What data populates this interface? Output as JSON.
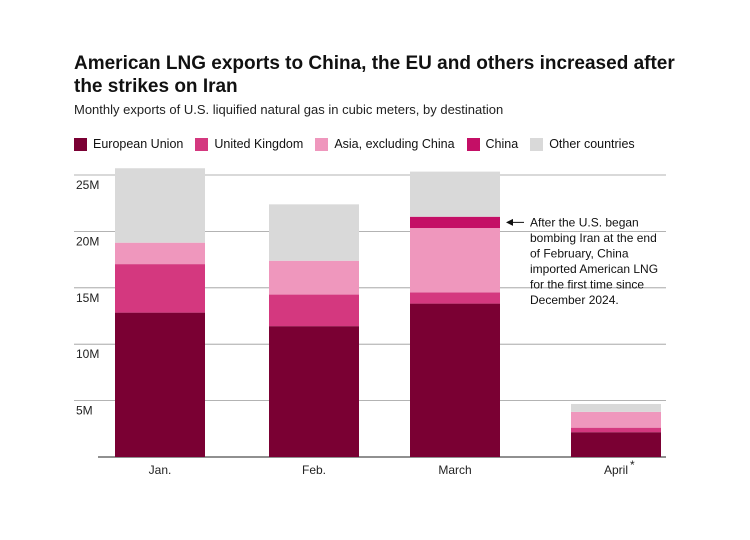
{
  "chart_data": {
    "type": "bar",
    "stacked": true,
    "title": "American LNG exports to China, the EU and others increased after the strikes on Iran",
    "subtitle": "Monthly exports of U.S. liquified natural gas in cubic meters, by destination",
    "categories": [
      "Jan.",
      "Feb.",
      "March",
      "April"
    ],
    "category_marks": [
      "",
      "",
      "",
      "*"
    ],
    "series": [
      {
        "name": "European Union",
        "color": "#7a0033",
        "values": [
          12.8,
          11.6,
          13.6,
          2.2
        ]
      },
      {
        "name": "United Kingdom",
        "color": "#d4387f",
        "values": [
          4.3,
          2.8,
          1.0,
          0.4
        ]
      },
      {
        "name": "Asia, excluding China",
        "color": "#ef97bd",
        "values": [
          1.9,
          3.0,
          5.7,
          1.4
        ]
      },
      {
        "name": "China",
        "color": "#c40f66",
        "values": [
          0,
          0,
          1.0,
          0
        ]
      },
      {
        "name": "Other countries",
        "color": "#d9d9d9",
        "values": [
          6.6,
          5.0,
          4.0,
          0.7
        ]
      }
    ],
    "ylim": [
      0,
      25
    ],
    "yticks": [
      5,
      10,
      15,
      20,
      25
    ],
    "ytick_labels": [
      "5M",
      "10M",
      "15M",
      "20M",
      "25M"
    ],
    "grid": true,
    "legend_position": "top-left",
    "annotation": {
      "target_category": "March",
      "target_series": "China",
      "lines": [
        "After the U.S. began",
        "bombing Iran at the end",
        "of February, China",
        "imported American LNG",
        "for the first time since",
        "December 2024."
      ]
    }
  }
}
